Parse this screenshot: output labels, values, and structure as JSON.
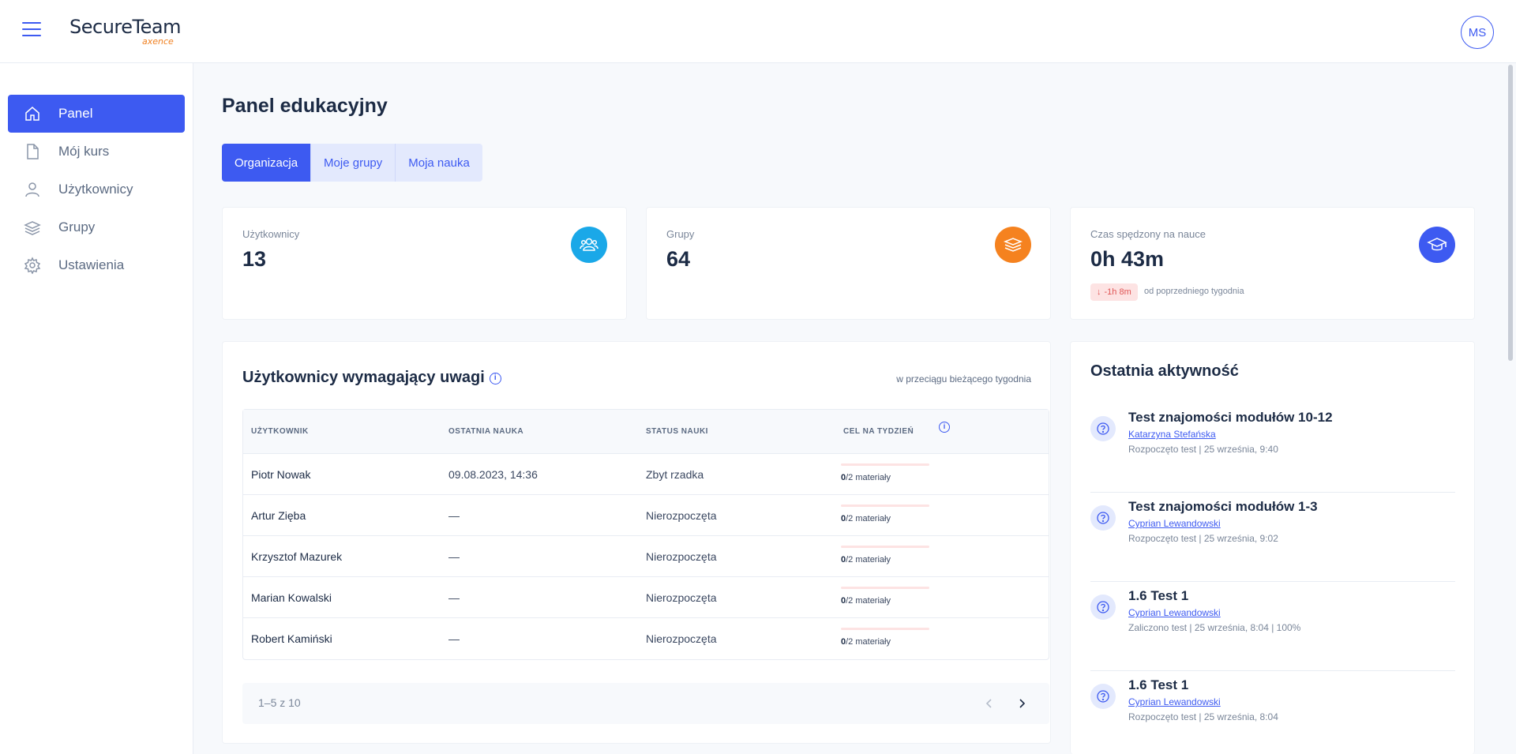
{
  "header": {
    "logo_main": "SecureTeam",
    "logo_sub": "axence",
    "avatar_initials": "MS"
  },
  "sidebar": {
    "items": [
      {
        "label": "Panel",
        "icon": "home-icon",
        "active": true
      },
      {
        "label": "Mój kurs",
        "icon": "document-icon",
        "active": false
      },
      {
        "label": "Użytkownicy",
        "icon": "user-icon",
        "active": false
      },
      {
        "label": "Grupy",
        "icon": "layers-icon",
        "active": false
      },
      {
        "label": "Ustawienia",
        "icon": "gear-icon",
        "active": false
      }
    ]
  },
  "main": {
    "title": "Panel edukacyjny",
    "tabs": [
      {
        "label": "Organizacja",
        "active": true
      },
      {
        "label": "Moje grupy",
        "active": false
      },
      {
        "label": "Moja nauka",
        "active": false
      }
    ],
    "stats": [
      {
        "label": "Użytkownicy",
        "value": "13",
        "icon": "users-icon",
        "color": "#1aa8e8"
      },
      {
        "label": "Grupy",
        "value": "64",
        "icon": "layers-icon",
        "color": "#f5821f"
      },
      {
        "label": "Czas spędzony na nauce",
        "value": "0h 43m",
        "icon": "graduation-cap-icon",
        "color": "#3d5af1",
        "delta": "-1h 8m",
        "delta_note": "od poprzedniego tygodnia"
      }
    ],
    "attention": {
      "title": "Użytkownicy wymagający uwagi",
      "period": "w przeciągu bieżącego tygodnia",
      "columns": [
        "UŻYTKOWNIK",
        "OSTATNIA NAUKA",
        "STATUS NAUKI",
        "CEL NA TYDZIEŃ"
      ],
      "rows": [
        {
          "user": "Piotr Nowak",
          "last": "09.08.2023, 14:36",
          "status": "Zbyt rzadka",
          "done": "0",
          "goal": "/2 materiały",
          "progress": 0
        },
        {
          "user": "Artur Zięba",
          "last": "—",
          "status": "Nierozpoczęta",
          "done": "0",
          "goal": "/2 materiały",
          "progress": 0
        },
        {
          "user": "Krzysztof Mazurek",
          "last": "—",
          "status": "Nierozpoczęta",
          "done": "0",
          "goal": "/2 materiały",
          "progress": 0
        },
        {
          "user": "Marian Kowalski",
          "last": "—",
          "status": "Nierozpoczęta",
          "done": "0",
          "goal": "/2 materiały",
          "progress": 0
        },
        {
          "user": "Robert Kamiński",
          "last": "—",
          "status": "Nierozpoczęta",
          "done": "0",
          "goal": "/2 materiały",
          "progress": 0
        }
      ],
      "pagination": "1–5 z 10"
    },
    "activity": {
      "title": "Ostatnia aktywność",
      "items": [
        {
          "title": "Test znajomości modułów 10-12",
          "user": "Katarzyna Stefańska",
          "meta": "Rozpoczęto test | 25 września, 9:40"
        },
        {
          "title": "Test znajomości modułów 1-3",
          "user": "Cyprian Lewandowski",
          "meta": "Rozpoczęto test | 25 września, 9:02"
        },
        {
          "title": "1.6 Test 1",
          "user": "Cyprian Lewandowski",
          "meta": "Zaliczono test | 25 września, 8:04 | 100%"
        },
        {
          "title": "1.6 Test 1",
          "user": "Cyprian Lewandowski",
          "meta": "Rozpoczęto test | 25 września, 8:04"
        }
      ]
    }
  }
}
